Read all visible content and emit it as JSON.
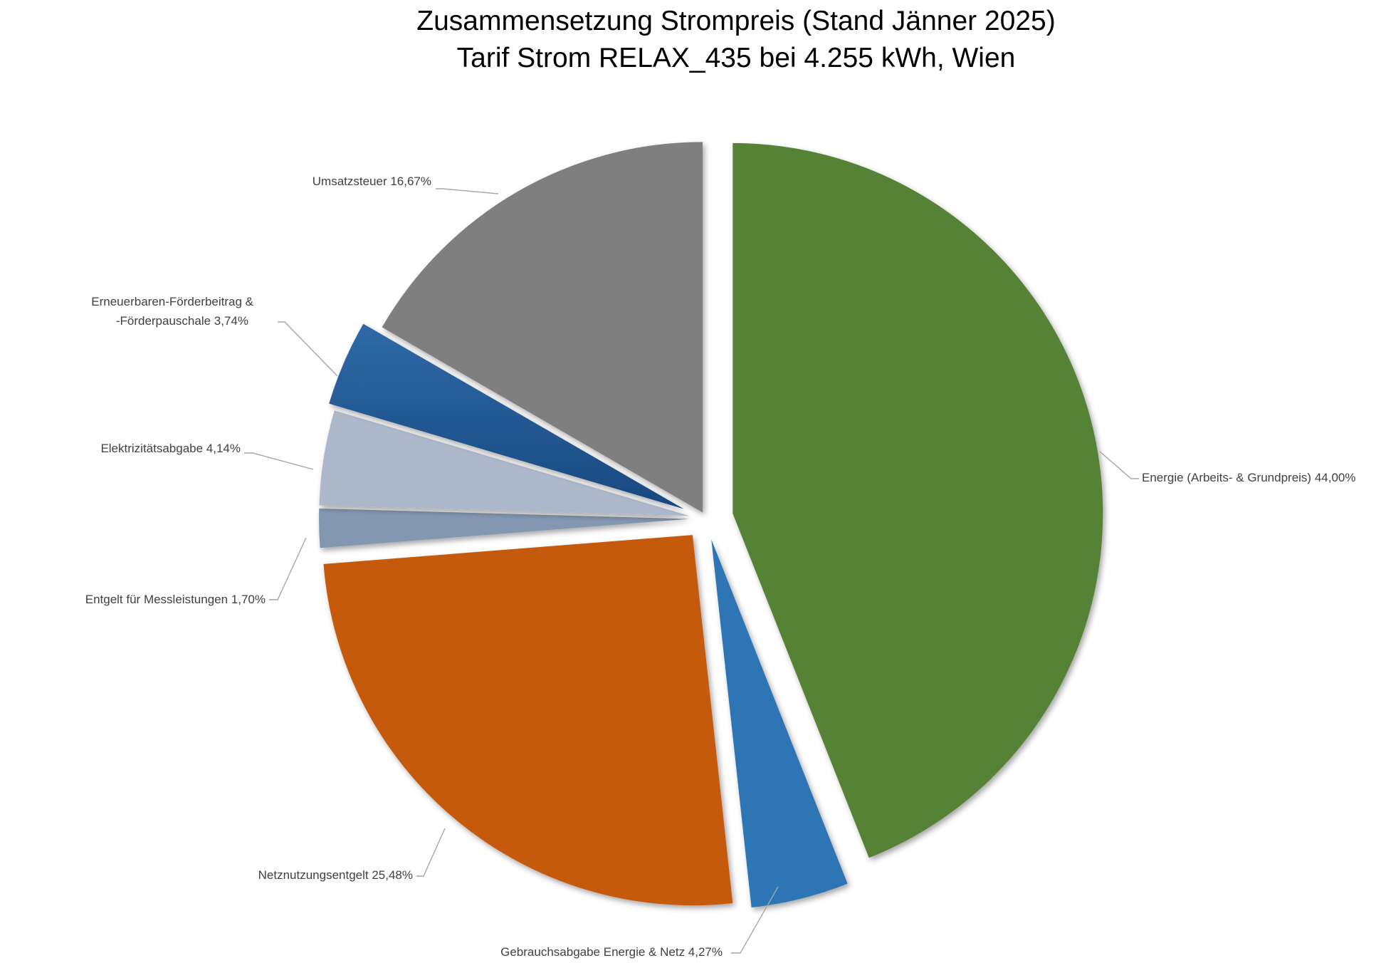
{
  "chart_data": {
    "type": "pie",
    "title": "Zusammensetzung Strompreis (Stand Jänner 2025)",
    "subtitle": "Tarif Strom RELAX_435 bei 4.255 kWh, Wien",
    "slices": [
      {
        "label": "Energie (Arbeits- & Grundpreis)",
        "value_label": "44,00%",
        "value": 44.0,
        "color": "#548235"
      },
      {
        "label": "Gebrauchsabgabe Energie & Netz",
        "value_label": "4,27%",
        "value": 4.27,
        "color": "#2e75b6"
      },
      {
        "label": "Netznutzungsentgelt",
        "value_label": "25,48%",
        "value": 25.48,
        "color": "#c55a11"
      },
      {
        "label": "Entgelt für Messleistungen",
        "value_label": "1,70%",
        "value": 1.7,
        "color": "#8497b0"
      },
      {
        "label": "Elektrizitätsabgabe",
        "value_label": "4,14%",
        "value": 4.14,
        "color": "#adb9ca"
      },
      {
        "label": "Erneuerbaren-Förderbeitrag & -Förderpauschale",
        "value_label": "3,74%",
        "value": 3.74,
        "color": "#1f5c99"
      },
      {
        "label": "Umsatzsteuer",
        "value_label": "16,67%",
        "value": 16.67,
        "color": "#7f7f7f"
      }
    ],
    "start_angle": "12 o'clock",
    "direction": "clockwise",
    "exploded": true
  }
}
